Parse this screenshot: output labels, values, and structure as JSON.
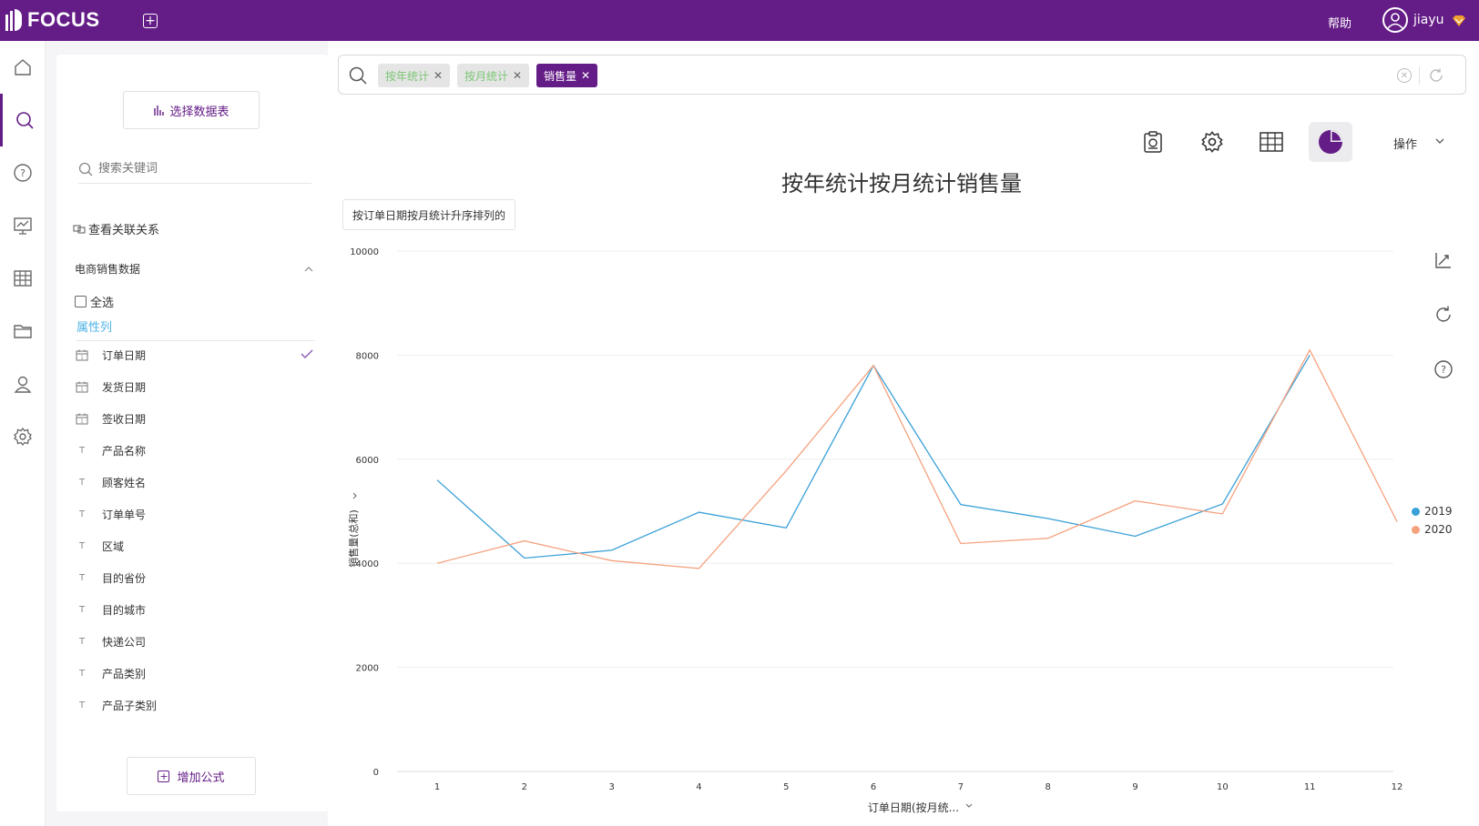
{
  "topbar": {
    "logo_text": "FOCUS",
    "help_label": "帮助",
    "username": "jiayu",
    "icons": [
      "add-tab-icon",
      "user-avatar-icon",
      "vip-icon"
    ]
  },
  "rail": {
    "items": [
      {
        "icon": "home-icon",
        "active": false
      },
      {
        "icon": "search-icon",
        "active": true
      },
      {
        "icon": "help-icon",
        "active": false
      },
      {
        "icon": "dashboard-icon",
        "active": false
      },
      {
        "icon": "table-icon",
        "active": false
      },
      {
        "icon": "folder-icon",
        "active": false
      },
      {
        "icon": "user-icon",
        "active": false
      },
      {
        "icon": "settings-icon",
        "active": false
      }
    ]
  },
  "panel": {
    "select_table_label": "选择数据表",
    "search_placeholder": "搜索关键词",
    "view_relations_label": "查看关联关系",
    "dataset_name": "电商销售数据",
    "select_all_label": "全选",
    "attribute_header": "属性列",
    "fields": [
      {
        "label": "订单日期",
        "type": "date",
        "selected": true
      },
      {
        "label": "发货日期",
        "type": "date",
        "selected": false
      },
      {
        "label": "签收日期",
        "type": "date",
        "selected": false
      },
      {
        "label": "产品名称",
        "type": "text",
        "selected": false
      },
      {
        "label": "顾客姓名",
        "type": "text",
        "selected": false
      },
      {
        "label": "订单单号",
        "type": "text",
        "selected": false
      },
      {
        "label": "区域",
        "type": "text",
        "selected": false
      },
      {
        "label": "目的省份",
        "type": "text",
        "selected": false
      },
      {
        "label": "目的城市",
        "type": "text",
        "selected": false
      },
      {
        "label": "快递公司",
        "type": "text",
        "selected": false
      },
      {
        "label": "产品类别",
        "type": "text",
        "selected": false
      },
      {
        "label": "产品子类别",
        "type": "text",
        "selected": false
      }
    ],
    "add_formula_label": "增加公式"
  },
  "search": {
    "chips": [
      {
        "label": "按年统计",
        "style": "light"
      },
      {
        "label": "按月统计",
        "style": "light"
      },
      {
        "label": "销售量",
        "style": "dark"
      }
    ]
  },
  "toolbar": {
    "ops_label": "操作",
    "icons": [
      "report-icon",
      "gear-icon",
      "table-view-icon",
      "pie-chart-icon"
    ]
  },
  "chart_header": {
    "title": "按年统计按月统计销售量",
    "sort_tag": "按订单日期按月统计升序排列的"
  },
  "chart_data": {
    "type": "line",
    "title": "按年统计按月统计销售量",
    "xlabel": "订单日期(按月统...",
    "ylabel": "销售量(总和)",
    "x": [
      "1",
      "2",
      "3",
      "4",
      "5",
      "6",
      "7",
      "8",
      "9",
      "10",
      "11",
      "12"
    ],
    "ylim": [
      0,
      10000
    ],
    "yticks": [
      "0",
      "2000",
      "4000",
      "6000",
      "8000",
      "10000"
    ],
    "grid": true,
    "legend_position": "right",
    "series": [
      {
        "name": "2019",
        "color": "#3aa0d8",
        "values": [
          5600,
          4100,
          4250,
          4980,
          4680,
          7800,
          5130,
          4860,
          4520,
          5140,
          8000,
          null
        ]
      },
      {
        "name": "2020",
        "color": "#f5a27f",
        "values": [
          4000,
          4430,
          4050,
          3900,
          5780,
          7800,
          4380,
          4480,
          5200,
          4950,
          8100,
          4800
        ]
      }
    ]
  }
}
